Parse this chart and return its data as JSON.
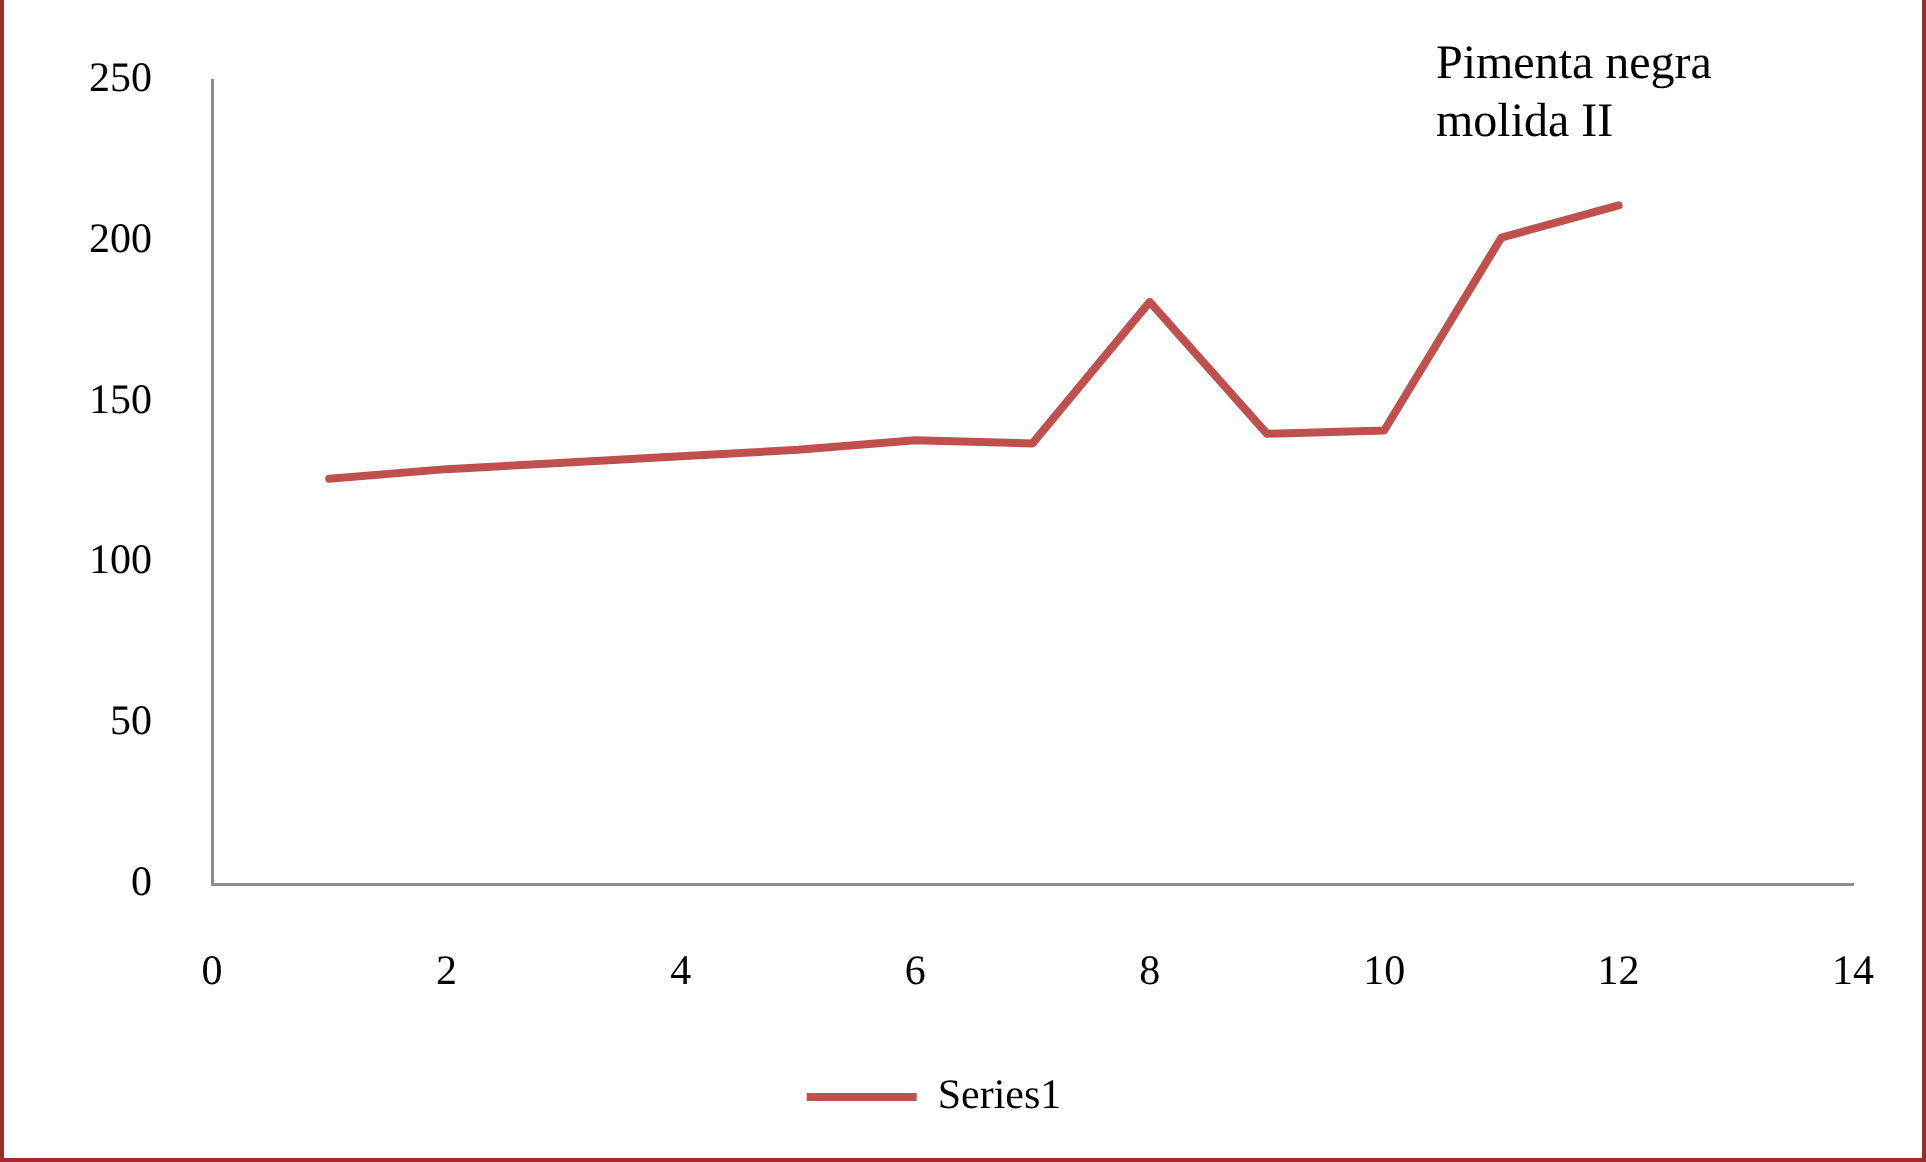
{
  "chart_data": {
    "type": "line",
    "title": "Pimenta negra molida II",
    "x": [
      1,
      2,
      3,
      4,
      5,
      6,
      7,
      8,
      9,
      10,
      11,
      12
    ],
    "series": [
      {
        "name": "Series1",
        "color": "#c0504d",
        "values": [
          126,
          129,
          131,
          133,
          135,
          138,
          137,
          181,
          140,
          141,
          201,
          211
        ]
      }
    ],
    "xlim": [
      0,
      14
    ],
    "xticks": [
      0,
      2,
      4,
      6,
      8,
      10,
      12,
      14
    ],
    "ylim": [
      0,
      250
    ],
    "yticks": [
      0,
      50,
      100,
      150,
      200,
      250
    ],
    "legend": "bottom",
    "marker": "none",
    "line_style": "solid"
  }
}
